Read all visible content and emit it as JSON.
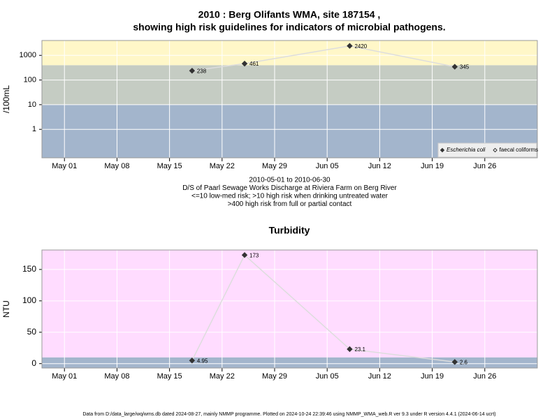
{
  "chart_data": [
    {
      "type": "line",
      "title": "2010 : Berg Olifants WMA, site 187154 ,",
      "subtitle": "showing high risk guidelines for indicators of microbial pathogens.",
      "ylabel": "/100mL",
      "log_y": true,
      "x": [
        "05-18",
        "05-25",
        "06-08",
        "06-22"
      ],
      "xlim": [
        "04-28",
        "07-03"
      ],
      "xticks": [
        {
          "value": "05-01",
          "label": "May 01"
        },
        {
          "value": "05-08",
          "label": "May 08"
        },
        {
          "value": "05-15",
          "label": "May 15"
        },
        {
          "value": "05-22",
          "label": "May 22"
        },
        {
          "value": "05-29",
          "label": "May 29"
        },
        {
          "value": "06-05",
          "label": "Jun 05"
        },
        {
          "value": "06-12",
          "label": "Jun 12"
        },
        {
          "value": "06-19",
          "label": "Jun 19"
        },
        {
          "value": "06-26",
          "label": "Jun 26"
        }
      ],
      "ylim": [
        0.07,
        4000
      ],
      "yticks": [
        1,
        10,
        100,
        1000
      ],
      "grid": true,
      "band_edges": [
        10,
        400
      ],
      "band_colors": [
        "#a3b5cc",
        "#c5ccc3",
        "#fff7c8"
      ],
      "line_color": "#dddddd",
      "series": [
        {
          "name": "Escherichia coli",
          "color": "#333333",
          "marker": "filled",
          "values": [
            238,
            461,
            2420,
            345
          ]
        },
        {
          "name": "faecal coliforms",
          "color": "#333333",
          "marker": "open",
          "values": [
            null,
            null,
            null,
            null
          ]
        }
      ],
      "legend": "lower right",
      "notes": [
        "2010-05-01 to 2010-06-30",
        "D/S of Paarl Sewage Works Discharge at Riviera Farm on Berg River",
        "<=10 low-med risk; >10 high risk when drinking untreated water",
        ">400 high risk from full or partial contact"
      ]
    },
    {
      "type": "line",
      "title": "Turbidity",
      "ylabel": "NTU",
      "log_y": false,
      "x": [
        "05-18",
        "05-25",
        "06-08",
        "06-22"
      ],
      "xlim": [
        "04-28",
        "07-03"
      ],
      "xticks": [
        {
          "value": "05-01",
          "label": "May 01"
        },
        {
          "value": "05-08",
          "label": "May 08"
        },
        {
          "value": "05-15",
          "label": "May 15"
        },
        {
          "value": "05-22",
          "label": "May 22"
        },
        {
          "value": "05-29",
          "label": "May 29"
        },
        {
          "value": "06-05",
          "label": "Jun 05"
        },
        {
          "value": "06-12",
          "label": "Jun 12"
        },
        {
          "value": "06-19",
          "label": "Jun 19"
        },
        {
          "value": "06-26",
          "label": "Jun 26"
        }
      ],
      "ylim": [
        -7,
        181
      ],
      "yticks": [
        0,
        50,
        100,
        150
      ],
      "grid": true,
      "band_edges": [
        10
      ],
      "band_colors": [
        "#a3b5cc",
        "#ffdcff"
      ],
      "line_color": "#dddddd",
      "series": [
        {
          "color": "#333333",
          "marker": "filled",
          "values": [
            4.95,
            173,
            23.1,
            2.6
          ]
        }
      ]
    }
  ],
  "footer": "Data from D:/data_large/wq/wms.db dated 2024-08-27, mainly NMMP programme. Plotted on 2024-10-24 22:39:46 using NMMP_WMA_web.R ver 9.3 under R version 4.4.1 (2024-06-14 ucrt)"
}
